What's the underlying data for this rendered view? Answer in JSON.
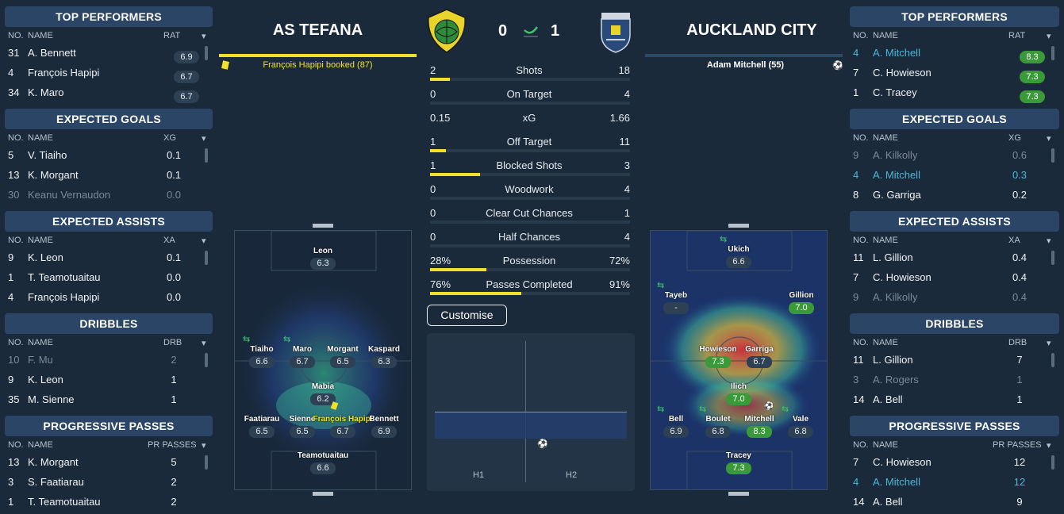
{
  "home": {
    "name": "AS TEFANA",
    "score": "0",
    "event": "François Hapipi booked (87)"
  },
  "away": {
    "name": "AUCKLAND CITY",
    "score": "1",
    "event": "Adam Mitchell (55)"
  },
  "colors": {
    "home_accent": "#f2e02a",
    "away_accent": "#4b86b4",
    "good_rating": "#3a9a3a",
    "highlight": "#4bb7d8"
  },
  "left_panels": [
    {
      "title": "TOP PERFORMERS",
      "cols": {
        "no": "NO.",
        "name": "NAME",
        "val": "RAT"
      },
      "rating": true,
      "rows": [
        {
          "no": "31",
          "name": "A. Bennett",
          "val": "6.9"
        },
        {
          "no": "4",
          "name": "François Hapipi",
          "val": "6.7"
        },
        {
          "no": "34",
          "name": "K. Maro",
          "val": "6.7"
        }
      ]
    },
    {
      "title": "EXPECTED GOALS",
      "cols": {
        "no": "NO.",
        "name": "NAME",
        "val": "XG"
      },
      "rows": [
        {
          "no": "5",
          "name": "V. Tiaiho",
          "val": "0.1"
        },
        {
          "no": "13",
          "name": "K. Morgant",
          "val": "0.1"
        },
        {
          "no": "30",
          "name": "Keanu Vernaudon",
          "val": "0.0",
          "dim": true
        }
      ]
    },
    {
      "title": "EXPECTED ASSISTS",
      "cols": {
        "no": "NO.",
        "name": "NAME",
        "val": "XA"
      },
      "rows": [
        {
          "no": "9",
          "name": "K. Leon",
          "val": "0.1"
        },
        {
          "no": "1",
          "name": "T. Teamotuaitau",
          "val": "0.0"
        },
        {
          "no": "4",
          "name": "François Hapipi",
          "val": "0.0"
        }
      ]
    },
    {
      "title": "DRIBBLES",
      "cols": {
        "no": "NO.",
        "name": "NAME",
        "val": "DRB"
      },
      "rows": [
        {
          "no": "10",
          "name": "F. Mu",
          "val": "2",
          "dim": true
        },
        {
          "no": "9",
          "name": "K. Leon",
          "val": "1"
        },
        {
          "no": "35",
          "name": "M. Sienne",
          "val": "1"
        }
      ]
    },
    {
      "title": "PROGRESSIVE PASSES",
      "cols": {
        "no": "NO.",
        "name": "NAME",
        "val": "PR PASSES"
      },
      "rows": [
        {
          "no": "13",
          "name": "K. Morgant",
          "val": "5"
        },
        {
          "no": "3",
          "name": "S. Faatiarau",
          "val": "2"
        },
        {
          "no": "1",
          "name": "T. Teamotuaitau",
          "val": "2"
        }
      ]
    }
  ],
  "right_panels": [
    {
      "title": "TOP PERFORMERS",
      "cols": {
        "no": "NO.",
        "name": "NAME",
        "val": "RAT"
      },
      "rating": true,
      "rows": [
        {
          "no": "4",
          "name": "A. Mitchell",
          "val": "8.3",
          "hl": true,
          "good": true
        },
        {
          "no": "7",
          "name": "C. Howieson",
          "val": "7.3",
          "good": true
        },
        {
          "no": "1",
          "name": "C. Tracey",
          "val": "7.3",
          "good": true
        }
      ]
    },
    {
      "title": "EXPECTED GOALS",
      "cols": {
        "no": "NO.",
        "name": "NAME",
        "val": "XG"
      },
      "rows": [
        {
          "no": "9",
          "name": "A. Kilkolly",
          "val": "0.6",
          "dim": true
        },
        {
          "no": "4",
          "name": "A. Mitchell",
          "val": "0.3",
          "hl": true
        },
        {
          "no": "8",
          "name": "G. Garriga",
          "val": "0.2"
        }
      ]
    },
    {
      "title": "EXPECTED ASSISTS",
      "cols": {
        "no": "NO.",
        "name": "NAME",
        "val": "XA"
      },
      "rows": [
        {
          "no": "11",
          "name": "L. Gillion",
          "val": "0.4"
        },
        {
          "no": "7",
          "name": "C. Howieson",
          "val": "0.4"
        },
        {
          "no": "9",
          "name": "A. Kilkolly",
          "val": "0.4",
          "dim": true
        }
      ]
    },
    {
      "title": "DRIBBLES",
      "cols": {
        "no": "NO.",
        "name": "NAME",
        "val": "DRB"
      },
      "rows": [
        {
          "no": "11",
          "name": "L. Gillion",
          "val": "7"
        },
        {
          "no": "3",
          "name": "A. Rogers",
          "val": "1",
          "dim": true
        },
        {
          "no": "14",
          "name": "A. Bell",
          "val": "1"
        }
      ]
    },
    {
      "title": "PROGRESSIVE PASSES",
      "cols": {
        "no": "NO.",
        "name": "NAME",
        "val": "PR PASSES"
      },
      "rows": [
        {
          "no": "7",
          "name": "C. Howieson",
          "val": "12"
        },
        {
          "no": "4",
          "name": "A. Mitchell",
          "val": "12",
          "hl": true
        },
        {
          "no": "14",
          "name": "A. Bell",
          "val": "9"
        }
      ]
    }
  ],
  "stats": [
    {
      "label": "Shots",
      "home": "2",
      "away": "18",
      "share": 0.1
    },
    {
      "label": "On Target",
      "home": "0",
      "away": "4",
      "share": 0
    },
    {
      "label": "xG",
      "home": "0.15",
      "away": "1.66",
      "share": 0,
      "no_bar": true
    },
    {
      "label": "Off Target",
      "home": "1",
      "away": "11",
      "share": 0.08
    },
    {
      "label": "Blocked Shots",
      "home": "1",
      "away": "3",
      "share": 0.25
    },
    {
      "label": "Woodwork",
      "home": "0",
      "away": "4",
      "share": 0
    },
    {
      "label": "Clear Cut Chances",
      "home": "0",
      "away": "1",
      "share": 0
    },
    {
      "label": "Half Chances",
      "home": "0",
      "away": "4",
      "share": 0
    },
    {
      "label": "Possession",
      "home": "28%",
      "away": "72%",
      "share": 0.28
    },
    {
      "label": "Passes Completed",
      "home": "76%",
      "away": "91%",
      "share": 0.455
    }
  ],
  "customise_label": "Customise",
  "momentum": {
    "h1": "H1",
    "h2": "H2"
  },
  "home_players": [
    {
      "name": "Leon",
      "rating": "6.3"
    },
    {
      "name": "Tiaiho",
      "rating": "6.6",
      "sub": true
    },
    {
      "name": "Maro",
      "rating": "6.7",
      "sub": true
    },
    {
      "name": "Morgant",
      "rating": "6.5"
    },
    {
      "name": "Kaspard",
      "rating": "6.3"
    },
    {
      "name": "Mabia",
      "rating": "6.2"
    },
    {
      "name": "Faatiarau",
      "rating": "6.5"
    },
    {
      "name": "Sienne",
      "rating": "6.5"
    },
    {
      "name": "François Hapipi",
      "rating": "6.7",
      "booked": true
    },
    {
      "name": "Bennett",
      "rating": "6.9"
    },
    {
      "name": "Teamotuaitau",
      "rating": "6.6"
    }
  ],
  "away_players": [
    {
      "name": "Ukich",
      "rating": "6.6",
      "sub": true
    },
    {
      "name": "Tayeb",
      "rating": "-",
      "sub": true
    },
    {
      "name": "Gillion",
      "rating": "7.0",
      "good": true
    },
    {
      "name": "Howieson",
      "rating": "7.3",
      "good": true
    },
    {
      "name": "Garriga",
      "rating": "6.7"
    },
    {
      "name": "Ilich",
      "rating": "7.0",
      "good": true
    },
    {
      "name": "Bell",
      "rating": "6.9",
      "sub": true
    },
    {
      "name": "Boulet",
      "rating": "6.8",
      "sub": true
    },
    {
      "name": "Mitchell",
      "rating": "8.3",
      "good": true,
      "goal": true
    },
    {
      "name": "Vale",
      "rating": "6.8",
      "sub": true
    },
    {
      "name": "Tracey",
      "rating": "7.3",
      "good": true
    }
  ]
}
